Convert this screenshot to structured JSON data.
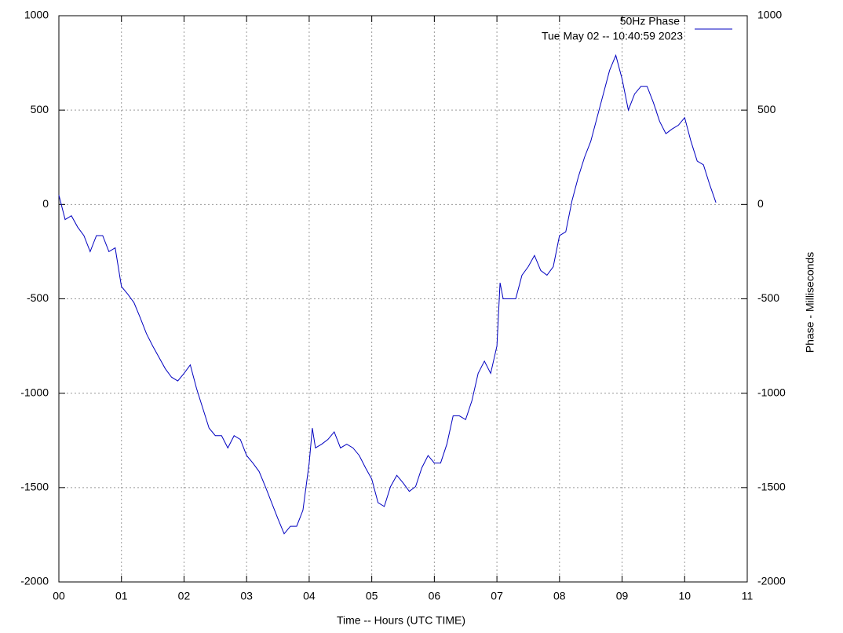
{
  "chart_data": {
    "type": "line",
    "legend_title": "50Hz Phase",
    "annotation": "Tue May 02 -- 10:40:59 2023",
    "xlabel": "Time -- Hours (UTC TIME)",
    "y2label": "Phase - Milliseconds",
    "legend": "top-right",
    "grid": true,
    "xlim": [
      0,
      11
    ],
    "xticks": [
      {
        "value": 0,
        "label": "00"
      },
      {
        "value": 1,
        "label": "01"
      },
      {
        "value": 2,
        "label": "02"
      },
      {
        "value": 3,
        "label": "03"
      },
      {
        "value": 4,
        "label": "04"
      },
      {
        "value": 5,
        "label": "05"
      },
      {
        "value": 6,
        "label": "06"
      },
      {
        "value": 7,
        "label": "07"
      },
      {
        "value": 8,
        "label": "08"
      },
      {
        "value": 9,
        "label": "09"
      },
      10,
      11
    ],
    "ylim": [
      -2000,
      1000
    ],
    "yticks": [
      -2000,
      -1500,
      -1000,
      -500,
      0,
      500,
      1000
    ],
    "y2lim": [
      -2000,
      1000
    ],
    "y2ticks": [
      -2000,
      -1500,
      -1000,
      -500,
      0,
      500,
      1000
    ],
    "x": [
      0,
      0.1,
      0.2,
      0.3,
      0.4,
      0.5,
      0.6,
      0.7,
      0.8,
      0.9,
      1.0,
      1.1,
      1.2,
      1.3,
      1.4,
      1.5,
      1.6,
      1.7,
      1.8,
      1.9,
      2.0,
      2.1,
      2.2,
      2.3,
      2.4,
      2.5,
      2.6,
      2.7,
      2.8,
      2.9,
      3.0,
      3.1,
      3.2,
      3.3,
      3.4,
      3.5,
      3.6,
      3.7,
      3.8,
      3.9,
      4.0,
      4.05,
      4.1,
      4.2,
      4.3,
      4.4,
      4.5,
      4.6,
      4.7,
      4.8,
      4.9,
      5.0,
      5.1,
      5.2,
      5.3,
      5.4,
      5.5,
      5.6,
      5.7,
      5.8,
      5.9,
      6.0,
      6.1,
      6.2,
      6.3,
      6.4,
      6.5,
      6.6,
      6.7,
      6.8,
      6.9,
      7.0,
      7.05,
      7.1,
      7.2,
      7.3,
      7.4,
      7.5,
      7.6,
      7.7,
      7.8,
      7.9,
      8.0,
      8.1,
      8.2,
      8.3,
      8.4,
      8.5,
      8.6,
      8.7,
      8.8,
      8.9,
      9.0,
      9.1,
      9.2,
      9.3,
      9.4,
      9.5,
      9.6,
      9.7,
      9.8,
      9.9,
      10.0,
      10.1,
      10.2,
      10.3,
      10.4,
      10.5
    ],
    "series": [
      {
        "name": "50Hz Phase",
        "color": "#0000c0",
        "values": [
          50,
          -80,
          -60,
          -120,
          -165,
          -250,
          -165,
          -165,
          -250,
          -230,
          -435,
          -475,
          -520,
          -600,
          -685,
          -750,
          -810,
          -870,
          -915,
          -935,
          -895,
          -850,
          -975,
          -1080,
          -1185,
          -1225,
          -1225,
          -1290,
          -1225,
          -1245,
          -1330,
          -1370,
          -1415,
          -1495,
          -1580,
          -1665,
          -1745,
          -1705,
          -1705,
          -1620,
          -1370,
          -1185,
          -1290,
          -1270,
          -1245,
          -1205,
          -1290,
          -1270,
          -1290,
          -1330,
          -1395,
          -1455,
          -1580,
          -1600,
          -1495,
          -1435,
          -1475,
          -1520,
          -1495,
          -1395,
          -1330,
          -1370,
          -1370,
          -1270,
          -1120,
          -1120,
          -1140,
          -1040,
          -895,
          -830,
          -895,
          -750,
          -415,
          -500,
          -500,
          -500,
          -375,
          -330,
          -270,
          -350,
          -375,
          -330,
          -165,
          -145,
          20,
          145,
          250,
          335,
          460,
          585,
          710,
          790,
          665,
          500,
          585,
          625,
          625,
          540,
          440,
          375,
          400,
          420,
          460,
          335,
          230,
          210,
          105,
          10
        ]
      }
    ]
  }
}
